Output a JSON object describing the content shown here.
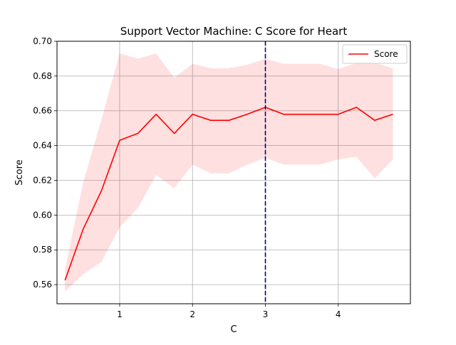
{
  "chart_data": {
    "type": "line",
    "title": "Support Vector Machine: C Score for Heart",
    "xlabel": "C",
    "ylabel": "Score",
    "xlim": [
      0.14,
      4.99
    ],
    "ylim": [
      0.549,
      0.7
    ],
    "xticks": [
      1,
      2,
      3,
      4
    ],
    "xtick_labels": [
      "1",
      "2",
      "3",
      "4"
    ],
    "yticks": [
      0.56,
      0.58,
      0.6,
      0.62,
      0.64,
      0.66,
      0.68,
      0.7
    ],
    "ytick_labels": [
      "0.56",
      "0.58",
      "0.60",
      "0.62",
      "0.64",
      "0.66",
      "0.68",
      "0.70"
    ],
    "grid": true,
    "legend_position": "top-right",
    "x": [
      0.25,
      0.5,
      0.75,
      1.0,
      1.25,
      1.5,
      1.75,
      2.0,
      2.25,
      2.5,
      2.75,
      3.0,
      3.25,
      3.5,
      3.75,
      4.0,
      4.25,
      4.5,
      4.75
    ],
    "series": [
      {
        "name": "Score",
        "color": "#ff0000",
        "values": [
          0.5625,
          0.592,
          0.614,
          0.643,
          0.647,
          0.658,
          0.647,
          0.658,
          0.6545,
          0.6545,
          0.658,
          0.662,
          0.658,
          0.658,
          0.658,
          0.658,
          0.662,
          0.6545,
          0.658
        ]
      }
    ],
    "band": {
      "color": "#ff0000",
      "opacity": 0.12,
      "upper": [
        0.569,
        0.619,
        0.655,
        0.693,
        0.69,
        0.693,
        0.679,
        0.687,
        0.6845,
        0.6845,
        0.6865,
        0.69,
        0.687,
        0.687,
        0.687,
        0.684,
        0.6875,
        0.6875,
        0.6845
      ],
      "lower": [
        0.556,
        0.566,
        0.573,
        0.593,
        0.604,
        0.623,
        0.6155,
        0.629,
        0.624,
        0.624,
        0.629,
        0.633,
        0.629,
        0.629,
        0.629,
        0.632,
        0.6335,
        0.621,
        0.632
      ]
    },
    "vline": {
      "x": 3.0,
      "color": "#00008b",
      "style": "dashed"
    }
  }
}
